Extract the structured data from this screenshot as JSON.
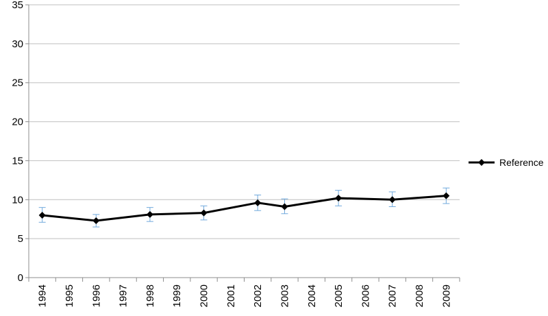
{
  "chart_data": {
    "type": "line",
    "title": "",
    "xlabel": "",
    "ylabel": "",
    "categories": [
      "1994",
      "1995",
      "1996",
      "1997",
      "1998",
      "1999",
      "2000",
      "2001",
      "2002",
      "2003",
      "2004",
      "2005",
      "2006",
      "2007",
      "2008",
      "2009"
    ],
    "y_ticks": [
      "0",
      "5",
      "10",
      "15",
      "20",
      "25",
      "30",
      "35"
    ],
    "ylim": [
      0,
      35
    ],
    "grid": "horizontal",
    "legend_position": "right",
    "series": [
      {
        "name": "Reference",
        "color": "#000000",
        "error_bar_color": "#6fa8dc",
        "points": [
          {
            "x": "1994",
            "y": 8.0,
            "err_low": 7.1,
            "err_high": 9.0
          },
          {
            "x": "1996",
            "y": 7.3,
            "err_low": 6.5,
            "err_high": 8.1
          },
          {
            "x": "1998",
            "y": 8.1,
            "err_low": 7.2,
            "err_high": 9.0
          },
          {
            "x": "2000",
            "y": 8.3,
            "err_low": 7.4,
            "err_high": 9.2
          },
          {
            "x": "2002",
            "y": 9.6,
            "err_low": 8.6,
            "err_high": 10.6
          },
          {
            "x": "2003",
            "y": 9.1,
            "err_low": 8.2,
            "err_high": 10.1
          },
          {
            "x": "2005",
            "y": 10.2,
            "err_low": 9.2,
            "err_high": 11.2
          },
          {
            "x": "2007",
            "y": 10.0,
            "err_low": 9.1,
            "err_high": 11.0
          },
          {
            "x": "2009",
            "y": 10.5,
            "err_low": 9.5,
            "err_high": 11.5
          }
        ]
      }
    ]
  }
}
